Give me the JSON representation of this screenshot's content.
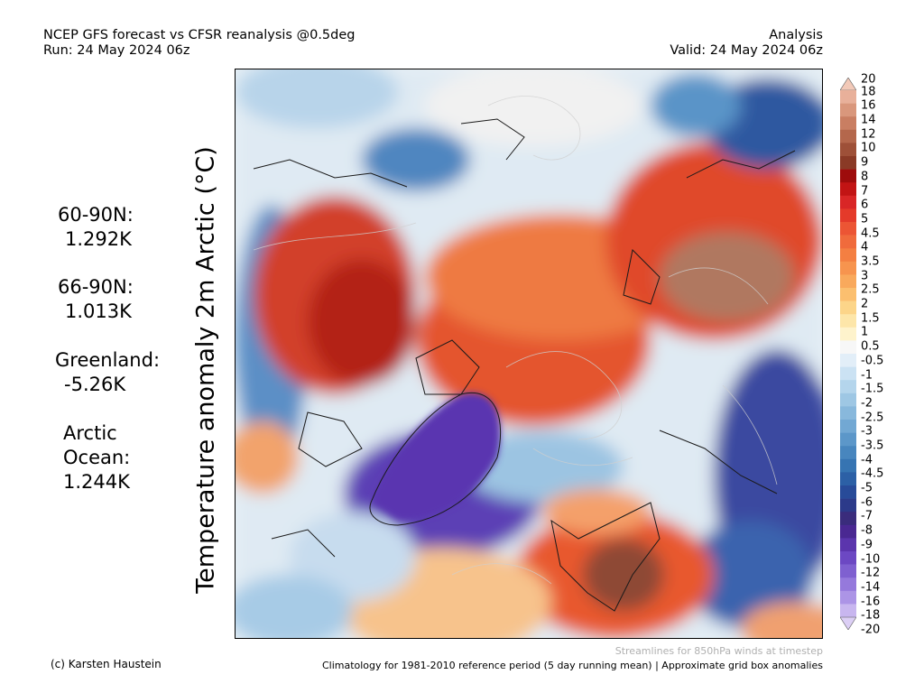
{
  "header": {
    "title_line1": "NCEP GFS forecast vs CFSR reanalysis @0.5deg",
    "title_line2": "Run: 24 May 2024 06z",
    "right_line1": "Analysis",
    "right_line2": "Valid: 24 May 2024 06z"
  },
  "axis_label": "Temperature anomaly 2m Arctic (°C)",
  "stats": [
    {
      "label": "60-90N:",
      "value": "1.292K"
    },
    {
      "label": "66-90N:",
      "value": "1.013K"
    },
    {
      "label": "Greenland:",
      "value": "-5.26K"
    },
    {
      "label": "Arctic",
      "label2": "Ocean:",
      "value": "1.244K"
    }
  ],
  "colorbar": {
    "labels": [
      "20",
      "18",
      "16",
      "14",
      "12",
      "10",
      "9",
      "8",
      "7",
      "6",
      "5",
      "4.5",
      "4",
      "3.5",
      "3",
      "2.5",
      "2",
      "1.5",
      "1",
      "0.5",
      "-0.5",
      "-1",
      "-1.5",
      "-2",
      "-2.5",
      "-3",
      "-3.5",
      "-4",
      "-4.5",
      "-5",
      "-6",
      "-7",
      "-8",
      "-9",
      "-10",
      "-12",
      "-14",
      "-16",
      "-18",
      "-20"
    ],
    "colors": [
      "#e8b09a",
      "#d9977c",
      "#c97e62",
      "#b4674c",
      "#9e5038",
      "#8a3a26",
      "#9e0c0c",
      "#c21414",
      "#d92626",
      "#e43a2a",
      "#ec5534",
      "#f06b3c",
      "#f47f42",
      "#f7944e",
      "#f9a95c",
      "#fbbf6f",
      "#fcd589",
      "#fde6a9",
      "#fef3cc",
      "#f7f7f7",
      "#e2eef8",
      "#cbe2f3",
      "#b4d5ec",
      "#9ec7e4",
      "#88b8dc",
      "#72a8d3",
      "#5c97c9",
      "#4886be",
      "#3674b2",
      "#2c60a6",
      "#284b99",
      "#2c3a8a",
      "#3a2c7c",
      "#4a2892",
      "#5b35ad",
      "#6c48c3",
      "#7f60d0",
      "#9579dc",
      "#ac94e6",
      "#c8b6ef"
    ],
    "top_color": "#f2c9b8",
    "bottom_color": "#dccff5"
  },
  "footer": {
    "credit": "(c) Karsten Haustein",
    "note": "Streamlines for 850hPa winds at timestep",
    "climatology": "Climatology for 1981-2010 reference period (5 day running mean) | Approximate grid box anomalies"
  }
}
